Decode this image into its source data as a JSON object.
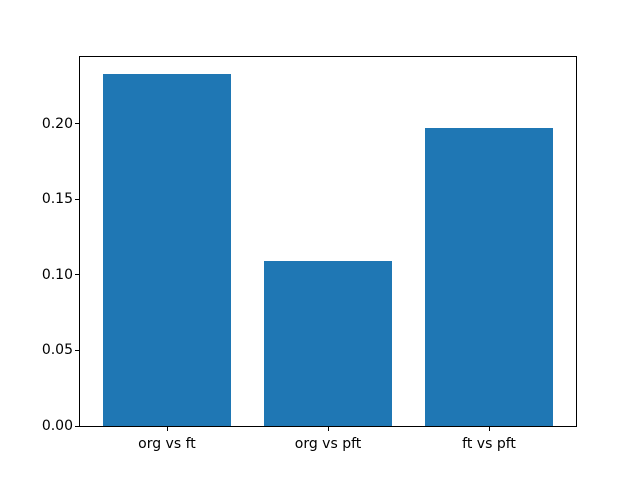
{
  "chart_data": {
    "type": "bar",
    "title": "",
    "xlabel": "",
    "ylabel": "",
    "categories": [
      "org vs ft",
      "org vs pft",
      "ft vs pft"
    ],
    "values": [
      0.233,
      0.109,
      0.197
    ],
    "yticks": [
      0.0,
      0.05,
      0.1,
      0.15,
      0.2
    ],
    "ytick_labels": [
      "0.00",
      "0.05",
      "0.10",
      "0.15",
      "0.20"
    ],
    "ylim": [
      0,
      0.2443
    ],
    "xlim": [
      -0.54,
      2.54
    ],
    "bar_width_units": 0.8,
    "grid": false,
    "legend": null,
    "bar_color": "#1f77b4",
    "spine_color": "#000000",
    "background_color": "#ffffff"
  }
}
